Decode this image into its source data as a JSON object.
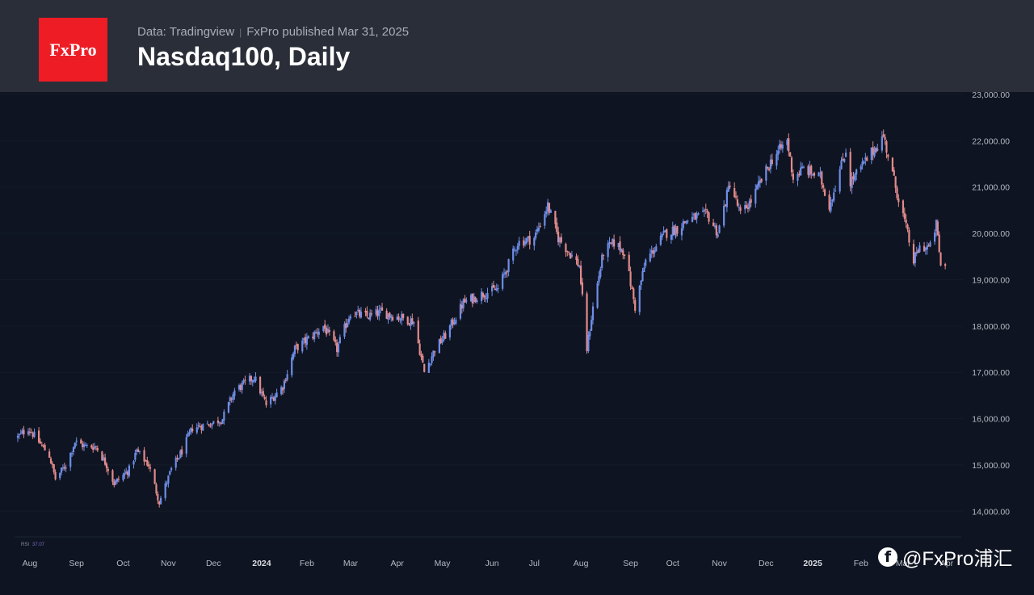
{
  "header": {
    "logo_text": "FxPro",
    "source": "Data: Tradingview",
    "publisher": "FxPro published Mar 31, 2025",
    "title": "Nasdaq100, Daily"
  },
  "indicator": {
    "label": "RSI",
    "value": "37.07"
  },
  "watermark": {
    "icon": "facebook-icon",
    "text": "@FxPro浦汇"
  },
  "colors": {
    "background": "#0e1421",
    "header": "#2a2e38",
    "logo": "#ee1c25",
    "up": "#6f8ee8",
    "down": "#e28b8b"
  },
  "chart_data": {
    "type": "candlestick",
    "ylim": [
      13500,
      23050
    ],
    "yticks": [
      14000,
      15000,
      16000,
      17000,
      18000,
      19000,
      20000,
      21000,
      22000,
      23000
    ],
    "ytick_labels": [
      "14,000.00",
      "15,000.00",
      "16,000.00",
      "17,000.00",
      "18,000.00",
      "19,000.00",
      "20,000.00",
      "21,000.00",
      "22,000.00",
      "23,000.00"
    ],
    "x_start": "2023-07-24",
    "x_end": "2025-04-01",
    "xticks": [
      {
        "date": "2023-08-01",
        "label": "Aug",
        "bold": false
      },
      {
        "date": "2023-09-01",
        "label": "Sep",
        "bold": false
      },
      {
        "date": "2023-10-02",
        "label": "Oct",
        "bold": false
      },
      {
        "date": "2023-11-01",
        "label": "Nov",
        "bold": false
      },
      {
        "date": "2023-12-01",
        "label": "Dec",
        "bold": false
      },
      {
        "date": "2024-01-02",
        "label": "2024",
        "bold": true
      },
      {
        "date": "2024-02-01",
        "label": "Feb",
        "bold": false
      },
      {
        "date": "2024-03-01",
        "label": "Mar",
        "bold": false
      },
      {
        "date": "2024-04-01",
        "label": "Apr",
        "bold": false
      },
      {
        "date": "2024-05-01",
        "label": "May",
        "bold": false
      },
      {
        "date": "2024-06-03",
        "label": "Jun",
        "bold": false
      },
      {
        "date": "2024-07-01",
        "label": "Jul",
        "bold": false
      },
      {
        "date": "2024-08-01",
        "label": "Aug",
        "bold": false
      },
      {
        "date": "2024-09-03",
        "label": "Sep",
        "bold": false
      },
      {
        "date": "2024-10-01",
        "label": "Oct",
        "bold": false
      },
      {
        "date": "2024-11-01",
        "label": "Nov",
        "bold": false
      },
      {
        "date": "2024-12-02",
        "label": "Dec",
        "bold": false
      },
      {
        "date": "2025-01-02",
        "label": "2025",
        "bold": true
      },
      {
        "date": "2025-02-03",
        "label": "Feb",
        "bold": false
      },
      {
        "date": "2025-03-03",
        "label": "Mar",
        "bold": false
      },
      {
        "date": "2025-04-01",
        "label": "Apr",
        "bold": false
      }
    ],
    "close_path": [
      [
        "2023-07-24",
        15600
      ],
      [
        "2023-07-31",
        15800
      ],
      [
        "2023-08-07",
        15500
      ],
      [
        "2023-08-14",
        15200
      ],
      [
        "2023-08-18",
        14700
      ],
      [
        "2023-08-25",
        15000
      ],
      [
        "2023-08-31",
        15500
      ],
      [
        "2023-09-07",
        15400
      ],
      [
        "2023-09-14",
        15400
      ],
      [
        "2023-09-21",
        15000
      ],
      [
        "2023-09-26",
        14600
      ],
      [
        "2023-10-06",
        14900
      ],
      [
        "2023-10-11",
        15300
      ],
      [
        "2023-10-19",
        15000
      ],
      [
        "2023-10-26",
        14200
      ],
      [
        "2023-11-03",
        14900
      ],
      [
        "2023-11-10",
        15300
      ],
      [
        "2023-11-17",
        15800
      ],
      [
        "2023-11-30",
        15900
      ],
      [
        "2023-12-07",
        16000
      ],
      [
        "2023-12-15",
        16600
      ],
      [
        "2023-12-28",
        16900
      ],
      [
        "2024-01-05",
        16300
      ],
      [
        "2024-01-16",
        16700
      ],
      [
        "2024-01-24",
        17500
      ],
      [
        "2024-02-05",
        17800
      ],
      [
        "2024-02-12",
        18000
      ],
      [
        "2024-02-21",
        17500
      ],
      [
        "2024-03-01",
        18300
      ],
      [
        "2024-03-12",
        18200
      ],
      [
        "2024-03-21",
        18300
      ],
      [
        "2024-04-01",
        18200
      ],
      [
        "2024-04-12",
        18100
      ],
      [
        "2024-04-19",
        17000
      ],
      [
        "2024-04-26",
        17500
      ],
      [
        "2024-05-03",
        17800
      ],
      [
        "2024-05-15",
        18500
      ],
      [
        "2024-05-28",
        18700
      ],
      [
        "2024-06-07",
        18800
      ],
      [
        "2024-06-20",
        19800
      ],
      [
        "2024-07-01",
        19900
      ],
      [
        "2024-07-10",
        20600
      ],
      [
        "2024-07-17",
        19900
      ],
      [
        "2024-07-31",
        19300
      ],
      [
        "2024-08-05",
        17500
      ],
      [
        "2024-08-09",
        18400
      ],
      [
        "2024-08-16",
        19600
      ],
      [
        "2024-08-23",
        19800
      ],
      [
        "2024-08-30",
        19600
      ],
      [
        "2024-09-06",
        18400
      ],
      [
        "2024-09-13",
        19400
      ],
      [
        "2024-09-26",
        20000
      ],
      [
        "2024-10-04",
        20100
      ],
      [
        "2024-10-11",
        20300
      ],
      [
        "2024-10-24",
        20400
      ],
      [
        "2024-10-31",
        20000
      ],
      [
        "2024-11-08",
        21100
      ],
      [
        "2024-11-15",
        20400
      ],
      [
        "2024-11-22",
        20700
      ],
      [
        "2024-12-06",
        21600
      ],
      [
        "2024-12-16",
        22000
      ],
      [
        "2024-12-20",
        21200
      ],
      [
        "2024-12-27",
        21400
      ],
      [
        "2025-01-07",
        21200
      ],
      [
        "2025-01-13",
        20600
      ],
      [
        "2025-01-24",
        21800
      ],
      [
        "2025-01-27",
        21100
      ],
      [
        "2025-02-07",
        21600
      ],
      [
        "2025-02-18",
        22100
      ],
      [
        "2025-02-26",
        21000
      ],
      [
        "2025-03-03",
        20400
      ],
      [
        "2025-03-10",
        19400
      ],
      [
        "2025-03-14",
        19700
      ],
      [
        "2025-03-21",
        19700
      ],
      [
        "2025-03-25",
        20200
      ],
      [
        "2025-03-28",
        19300
      ],
      [
        "2025-03-31",
        19300
      ]
    ]
  }
}
